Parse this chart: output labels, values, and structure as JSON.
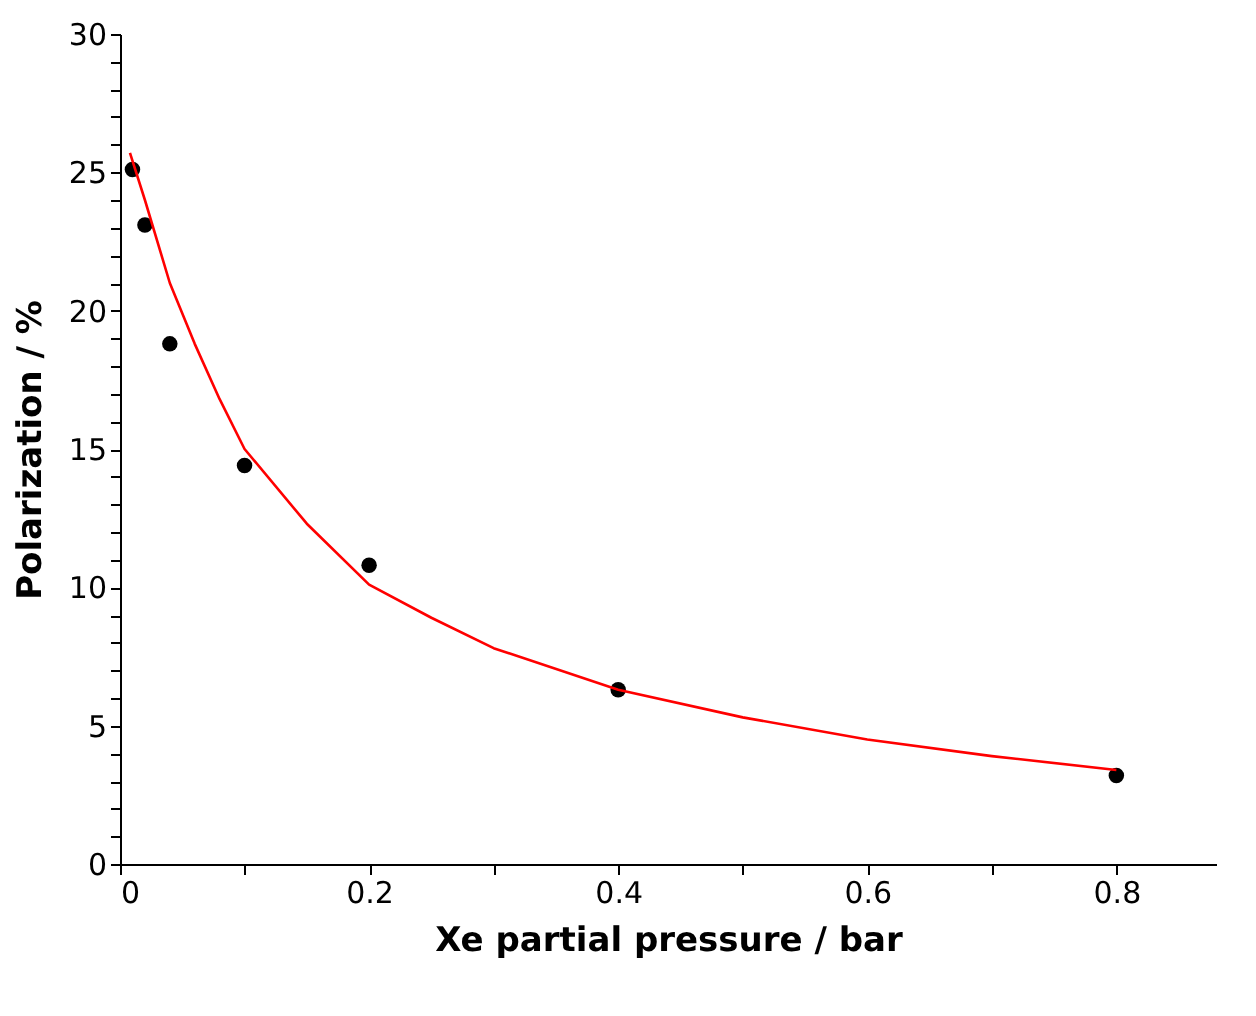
{
  "chart_data": {
    "type": "scatter",
    "xlabel": "Xe partial pressure / bar",
    "ylabel": "Polarization / %",
    "xlim": [
      0,
      0.88
    ],
    "ylim": [
      0,
      30
    ],
    "marker": "circle",
    "grid": false,
    "xticks": [
      0,
      {
        "value": 0.1,
        "label": null
      },
      0.2,
      {
        "value": 0.3,
        "label": null
      },
      0.4,
      {
        "value": 0.5,
        "label": null
      },
      0.6,
      {
        "value": 0.7,
        "label": null
      },
      0.8
    ],
    "yticks": [
      0,
      {
        "value": 1,
        "label": null
      },
      {
        "value": 2,
        "label": null
      },
      {
        "value": 3,
        "label": null
      },
      {
        "value": 4,
        "label": null
      },
      5,
      {
        "value": 6,
        "label": null
      },
      {
        "value": 7,
        "label": null
      },
      {
        "value": 8,
        "label": null
      },
      {
        "value": 9,
        "label": null
      },
      10,
      {
        "value": 11,
        "label": null
      },
      {
        "value": 12,
        "label": null
      },
      {
        "value": 13,
        "label": null
      },
      {
        "value": 14,
        "label": null
      },
      15,
      {
        "value": 16,
        "label": null
      },
      {
        "value": 17,
        "label": null
      },
      {
        "value": 18,
        "label": null
      },
      {
        "value": 19,
        "label": null
      },
      20,
      {
        "value": 21,
        "label": null
      },
      {
        "value": 22,
        "label": null
      },
      {
        "value": 23,
        "label": null
      },
      {
        "value": 24,
        "label": null
      },
      25,
      {
        "value": 26,
        "label": null
      },
      {
        "value": 27,
        "label": null
      },
      {
        "value": 28,
        "label": null
      },
      {
        "value": 29,
        "label": null
      },
      30
    ],
    "series": [
      {
        "type": "scatter",
        "color": "#000000",
        "x": [
          0.01,
          0.02,
          0.04,
          0.1,
          0.2,
          0.4,
          0.8
        ],
        "values": [
          25.1,
          23.1,
          18.8,
          14.4,
          10.8,
          6.3,
          3.2
        ]
      },
      {
        "type": "line",
        "color": "#ff0000",
        "marker": "none",
        "x": [
          0.008,
          0.02,
          0.04,
          0.06,
          0.08,
          0.1,
          0.15,
          0.2,
          0.25,
          0.3,
          0.4,
          0.5,
          0.6,
          0.7,
          0.8
        ],
        "values": [
          25.7,
          24.0,
          21.0,
          18.8,
          16.8,
          15.0,
          12.3,
          10.1,
          8.9,
          7.8,
          6.3,
          5.3,
          4.5,
          3.9,
          3.4
        ]
      }
    ]
  }
}
